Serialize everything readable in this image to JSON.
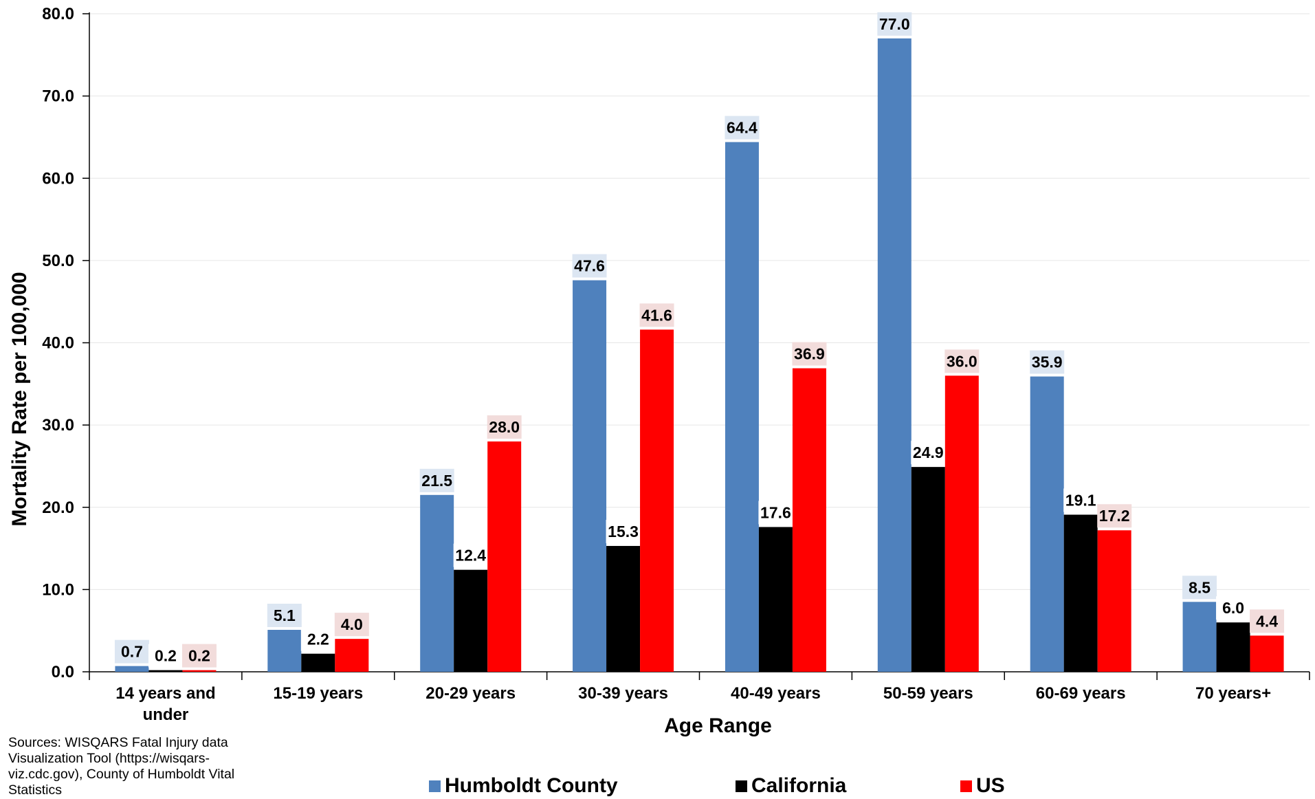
{
  "chart_data": {
    "type": "bar",
    "title": "",
    "xlabel": "Age Range",
    "ylabel": "Mortality Rate per 100,000",
    "ylim": [
      0,
      80
    ],
    "yticks": [
      "0.0",
      "10.0",
      "20.0",
      "30.0",
      "40.0",
      "50.0",
      "60.0",
      "70.0",
      "80.0"
    ],
    "categories": [
      "14 years and under",
      "15-19 years",
      "20-29 years",
      "30-39 years",
      "40-49 years",
      "50-59 years",
      "60-69 years",
      "70 years+"
    ],
    "series": [
      {
        "name": "Humboldt County",
        "color": "#4F81BD",
        "label_bg": "#DCE6F2",
        "values": [
          0.7,
          5.1,
          21.5,
          47.6,
          64.4,
          77.0,
          35.9,
          8.5
        ]
      },
      {
        "name": "California",
        "color": "#000000",
        "label_bg": "#FFFFFF",
        "values": [
          0.2,
          2.2,
          12.4,
          15.3,
          17.6,
          24.9,
          19.1,
          6.0
        ]
      },
      {
        "name": "US",
        "color": "#FF0000",
        "label_bg": "#F2DCDB",
        "values": [
          0.2,
          4.0,
          28.0,
          41.6,
          36.9,
          36.0,
          17.2,
          4.4
        ]
      }
    ],
    "grid": true,
    "legend_position": "bottom"
  },
  "source_note": "Sources:  WISQARS Fatal Injury data Visualization Tool (https://wisqars-viz.cdc.gov), County of Humboldt Vital Statistics"
}
